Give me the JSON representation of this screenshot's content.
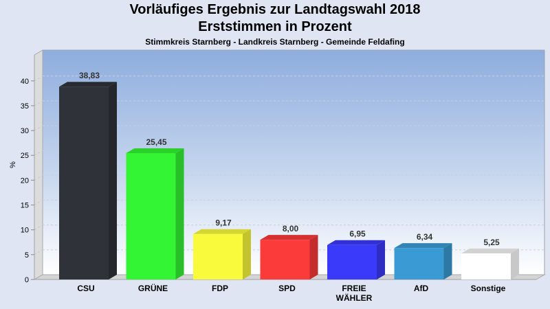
{
  "chart_data": {
    "type": "bar",
    "title": "Vorläufiges Ergebnis zur Landtagswahl 2018",
    "subtitle": "Erststimmen in Prozent",
    "subtitle2": "Stimmkreis Starnberg - Landkreis Starnberg - Gemeinde Feldafing",
    "xlabel": "",
    "ylabel": "%",
    "ylim": [
      0,
      45
    ],
    "yticks": [
      0,
      5,
      10,
      15,
      20,
      25,
      30,
      35,
      40
    ],
    "grid": true,
    "categories": [
      "CSU",
      "GRÜNE",
      "FDP",
      "SPD",
      "FREIE WÄHLER",
      "AfD",
      "Sonstige"
    ],
    "category_lines": [
      [
        "CSU"
      ],
      [
        "GRÜNE"
      ],
      [
        "FDP"
      ],
      [
        "SPD"
      ],
      [
        "FREIE",
        "WÄHLER"
      ],
      [
        "AfD"
      ],
      [
        "Sonstige"
      ]
    ],
    "values": [
      38.83,
      25.45,
      9.17,
      8.0,
      6.95,
      6.34,
      5.25
    ],
    "value_labels": [
      "38,83",
      "25,45",
      "9,17",
      "8,00",
      "6,95",
      "6,34",
      "5,25"
    ],
    "colors": [
      "#2f3238",
      "#33f533",
      "#fafa3c",
      "#fb3a3a",
      "#3a3afa",
      "#3a9bd4",
      "#ffffff"
    ]
  }
}
